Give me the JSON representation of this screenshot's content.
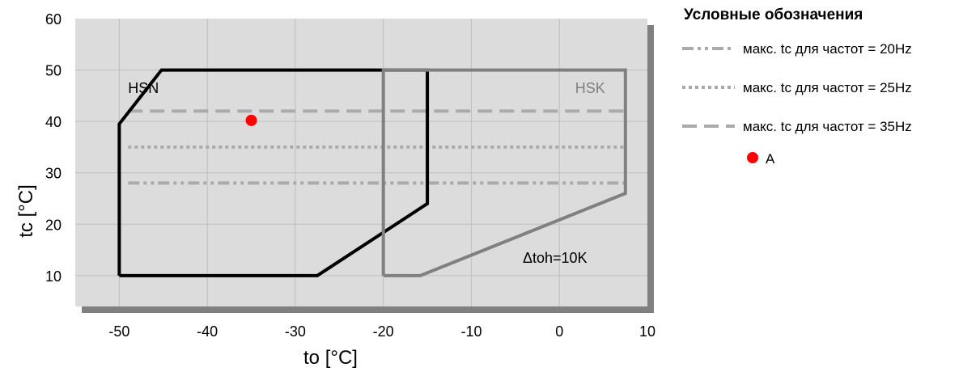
{
  "chart_data": {
    "type": "line",
    "xlabel": "to [°C]",
    "ylabel": "tc [°C]",
    "xlim": [
      -55,
      10
    ],
    "ylim": [
      4,
      60
    ],
    "xticks": [
      -50,
      -40,
      -30,
      -20,
      -10,
      0,
      10
    ],
    "yticks": [
      10,
      20,
      30,
      40,
      50,
      60
    ],
    "grid": true,
    "regions": [
      {
        "name": "HSN",
        "color": "#000000",
        "points": [
          [
            -50,
            10
          ],
          [
            -27.5,
            10
          ],
          [
            -15,
            24
          ],
          [
            -15,
            50
          ],
          [
            -45.2,
            50
          ],
          [
            -50,
            39.5
          ],
          [
            -50,
            10
          ]
        ]
      },
      {
        "name": "HSK",
        "color": "#808080",
        "points": [
          [
            -20,
            10
          ],
          [
            -15.8,
            10
          ],
          [
            7.5,
            26
          ],
          [
            7.5,
            50
          ],
          [
            -20,
            50
          ],
          [
            -20,
            10
          ]
        ]
      }
    ],
    "series": [
      {
        "name": "макс. tc для частот = 20Hz",
        "style": "dashdot",
        "color": "#aaaaaa",
        "x": [
          -49,
          7.5
        ],
        "y": [
          28,
          28
        ]
      },
      {
        "name": "макс. tc для частот = 25Hz",
        "style": "dotted",
        "color": "#aaaaaa",
        "x": [
          -49,
          7.5
        ],
        "y": [
          35,
          35
        ]
      },
      {
        "name": "макс. tc для частот = 35Hz",
        "style": "dashed",
        "color": "#aaaaaa",
        "x": [
          -49,
          7.5
        ],
        "y": [
          42,
          42
        ]
      }
    ],
    "points": [
      {
        "name": "A",
        "x": -35,
        "y": 40.2,
        "color": "#ff0000"
      }
    ],
    "annotation": "Δtoh=10K",
    "legend": {
      "title": "Условные обозначения",
      "placement": "right"
    },
    "colors": {
      "plot_background": "#dcdcdc",
      "shadow": "#808080",
      "grid": "#bfbfbf"
    }
  }
}
